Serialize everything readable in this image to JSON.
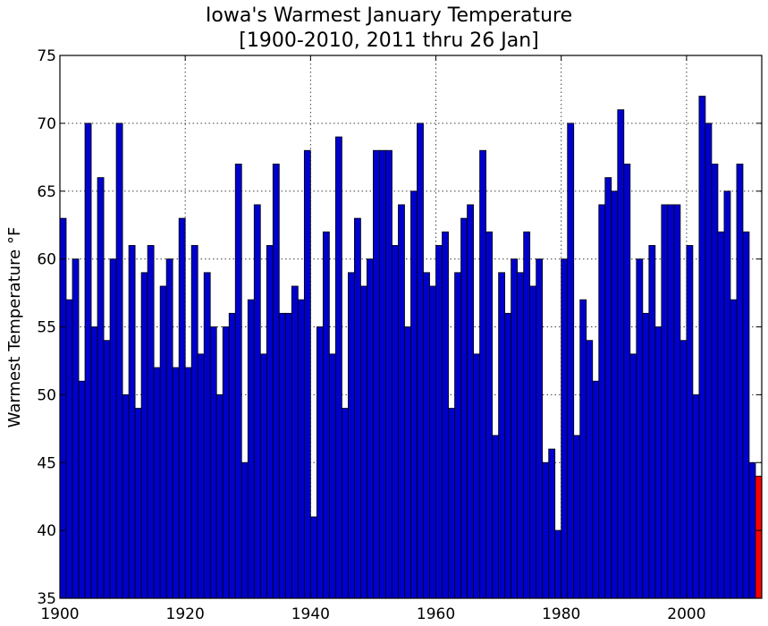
{
  "chart_data": {
    "type": "bar",
    "title": "Iowa's Warmest January Temperature",
    "subtitle": "[1900-2010, 2011 thru 26 Jan]",
    "ylabel": "Warmest Temperature °F",
    "xlabel": "",
    "ylim": [
      35,
      75
    ],
    "xlim": [
      1900,
      2012
    ],
    "yticks": [
      35,
      40,
      45,
      50,
      55,
      60,
      65,
      70,
      75
    ],
    "xticks": [
      1900,
      1920,
      1940,
      1960,
      1980,
      2000
    ],
    "grid": true,
    "colors": {
      "bar": "#0000cc",
      "highlight": "#ff0000"
    },
    "highlight_year": 2011,
    "x": [
      1900,
      1901,
      1902,
      1903,
      1904,
      1905,
      1906,
      1907,
      1908,
      1909,
      1910,
      1911,
      1912,
      1913,
      1914,
      1915,
      1916,
      1917,
      1918,
      1919,
      1920,
      1921,
      1922,
      1923,
      1924,
      1925,
      1926,
      1927,
      1928,
      1929,
      1930,
      1931,
      1932,
      1933,
      1934,
      1935,
      1936,
      1937,
      1938,
      1939,
      1940,
      1941,
      1942,
      1943,
      1944,
      1945,
      1946,
      1947,
      1948,
      1949,
      1950,
      1951,
      1952,
      1953,
      1954,
      1955,
      1956,
      1957,
      1958,
      1959,
      1960,
      1961,
      1962,
      1963,
      1964,
      1965,
      1966,
      1967,
      1968,
      1969,
      1970,
      1971,
      1972,
      1973,
      1974,
      1975,
      1976,
      1977,
      1978,
      1979,
      1980,
      1981,
      1982,
      1983,
      1984,
      1985,
      1986,
      1987,
      1988,
      1989,
      1990,
      1991,
      1992,
      1993,
      1994,
      1995,
      1996,
      1997,
      1998,
      1999,
      2000,
      2001,
      2002,
      2003,
      2004,
      2005,
      2006,
      2007,
      2008,
      2009,
      2010,
      2011
    ],
    "values": [
      63,
      57,
      60,
      51,
      70,
      55,
      66,
      54,
      60,
      70,
      50,
      61,
      49,
      59,
      61,
      52,
      58,
      60,
      52,
      63,
      52,
      61,
      53,
      59,
      55,
      50,
      55,
      56,
      67,
      45,
      57,
      64,
      53,
      61,
      67,
      56,
      56,
      58,
      57,
      68,
      41,
      55,
      62,
      53,
      69,
      49,
      59,
      63,
      58,
      60,
      68,
      68,
      68,
      61,
      64,
      55,
      65,
      70,
      59,
      58,
      61,
      62,
      49,
      59,
      63,
      64,
      53,
      68,
      62,
      47,
      59,
      56,
      60,
      59,
      62,
      58,
      60,
      45,
      46,
      40,
      60,
      70,
      47,
      57,
      54,
      51,
      64,
      66,
      65,
      71,
      67,
      53,
      60,
      56,
      61,
      55,
      64,
      64,
      64,
      54,
      61,
      50,
      72,
      70,
      67,
      62,
      65,
      57,
      67,
      62,
      45,
      44
    ]
  }
}
